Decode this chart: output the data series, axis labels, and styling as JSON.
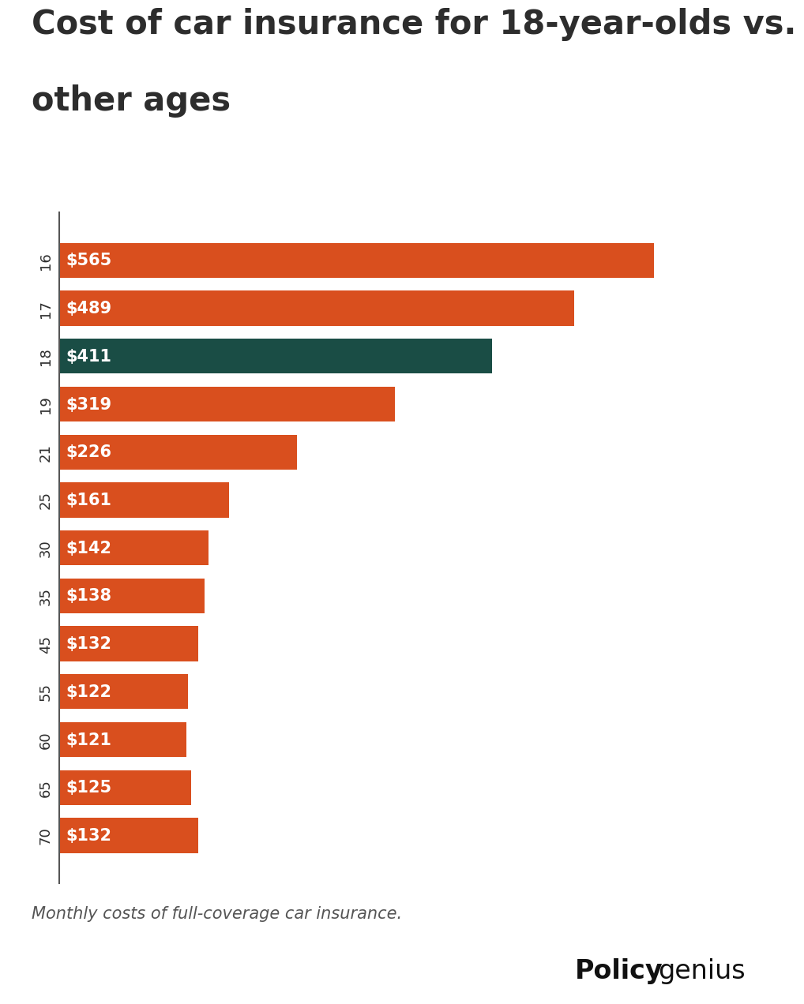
{
  "title_line1": "Cost of car insurance for 18-year-olds vs.",
  "title_line2": "other ages",
  "categories": [
    "16",
    "17",
    "18",
    "19",
    "21",
    "25",
    "30",
    "35",
    "45",
    "55",
    "60",
    "65",
    "70"
  ],
  "values": [
    565,
    489,
    411,
    319,
    226,
    161,
    142,
    138,
    132,
    122,
    121,
    125,
    132
  ],
  "bar_colors": [
    "#D94F1E",
    "#D94F1E",
    "#1A4D45",
    "#D94F1E",
    "#D94F1E",
    "#D94F1E",
    "#D94F1E",
    "#D94F1E",
    "#D94F1E",
    "#D94F1E",
    "#D94F1E",
    "#D94F1E",
    "#D94F1E"
  ],
  "label_texts": [
    "$565",
    "$489",
    "$411",
    "$319",
    "$226",
    "$161",
    "$142",
    "$138",
    "$132",
    "$122",
    "$121",
    "$125",
    "$132"
  ],
  "footnote": "Monthly costs of full-coverage car insurance.",
  "bg_color": "#ffffff",
  "bar_text_color": "#ffffff",
  "title_color": "#2d2d2d",
  "footnote_color": "#555555",
  "grid_color": "#dddddd",
  "xlim": [
    0,
    630
  ],
  "title_fontsize": 30,
  "label_fontsize": 15,
  "tick_fontsize": 13,
  "footnote_fontsize": 15,
  "logo_fontsize": 24,
  "policygenius_bold": "Policy",
  "policygenius_light": "genius"
}
